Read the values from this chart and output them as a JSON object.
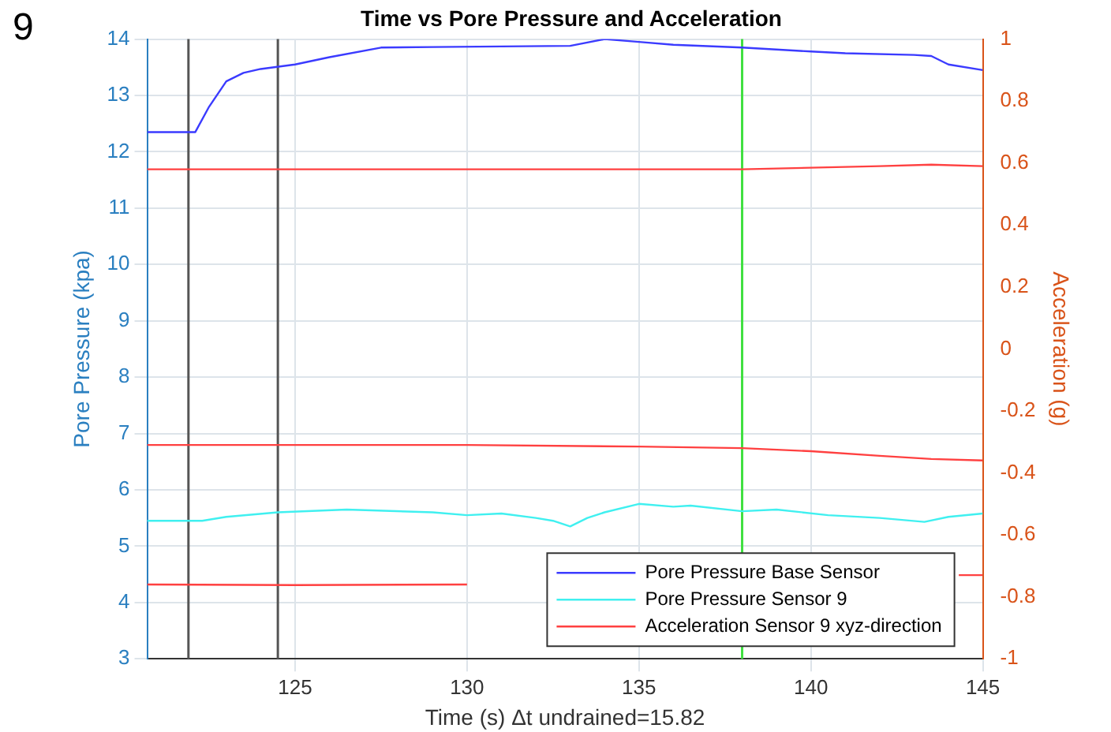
{
  "chart_data": {
    "type": "line",
    "title": "Time vs Pore Pressure and Acceleration",
    "xlabel": "Time (s) Δt undrained=15.82",
    "ylabel": "Pore Pressure (kpa)",
    "y2label": "Acceleration (g)",
    "annotations": [
      "9"
    ],
    "xlim": [
      120.7,
      145
    ],
    "xticks": [
      125,
      130,
      135,
      140,
      145
    ],
    "ylim": [
      3,
      14
    ],
    "yticks": [
      3,
      4,
      5,
      6,
      7,
      8,
      9,
      10,
      11,
      12,
      13,
      14
    ],
    "y2lim": [
      -1,
      1
    ],
    "y2ticks": [
      -1,
      -0.8,
      -0.6,
      -0.4,
      -0.2,
      0,
      0.2,
      0.4,
      0.6,
      0.8,
      1
    ],
    "grid": true,
    "legend": "bottom right",
    "marker": "none",
    "line_style": "solid",
    "series": [
      {
        "name": "Pore Pressure Base Sensor",
        "color": "#3b3bff",
        "x": [
          120.7,
          122.1,
          122.5,
          123,
          123.5,
          124,
          125,
          126,
          127.5,
          129,
          131,
          133,
          134,
          135,
          136,
          138,
          140,
          141,
          143,
          143.5,
          144,
          145
        ],
        "values": [
          12.35,
          12.35,
          12.8,
          13.25,
          13.4,
          13.47,
          13.55,
          13.68,
          13.85,
          13.86,
          13.87,
          13.88,
          14.0,
          13.95,
          13.9,
          13.85,
          13.78,
          13.75,
          13.72,
          13.7,
          13.55,
          13.45
        ]
      },
      {
        "name": "Pore Pressure Sensor 9",
        "color": "#40f0f0",
        "x": [
          120.7,
          122.3,
          123,
          124.5,
          126.5,
          129,
          130,
          131,
          132,
          132.5,
          133,
          133.5,
          134,
          135,
          136,
          136.5,
          138,
          139,
          140.5,
          142,
          143.3,
          144,
          145
        ],
        "values": [
          5.45,
          5.45,
          5.52,
          5.6,
          5.65,
          5.6,
          5.55,
          5.58,
          5.5,
          5.45,
          5.35,
          5.5,
          5.6,
          5.75,
          5.7,
          5.72,
          5.62,
          5.65,
          5.55,
          5.5,
          5.43,
          5.52,
          5.58
        ]
      },
      {
        "name": "Acceleration Sensor 9 xyz-direction",
        "color": "#ff4040",
        "axis": "y2",
        "x": [
          120.7,
          130,
          138,
          142,
          143.5,
          145
        ],
        "values": [
          0.58,
          0.58,
          0.58,
          0.59,
          0.595,
          0.59
        ]
      },
      {
        "color": "#ff4040",
        "axis": "y2",
        "x": [
          120.7,
          125,
          130,
          135,
          138,
          140,
          142,
          143.5,
          145
        ],
        "values": [
          -0.31,
          -0.31,
          -0.31,
          -0.315,
          -0.32,
          -0.33,
          -0.345,
          -0.355,
          -0.36
        ]
      },
      {
        "color": "#ff4040",
        "axis": "y2",
        "x": [
          120.7,
          125,
          130,
          135,
          138,
          140,
          142,
          144.3,
          145
        ],
        "values": [
          -0.76,
          -0.762,
          -0.76,
          null,
          null,
          null,
          null,
          -0.73,
          -0.73
        ]
      }
    ],
    "ref_lines": [
      {
        "axis": "x",
        "value": 121.9,
        "color": "#555555"
      },
      {
        "axis": "x",
        "value": 124.5,
        "color": "#555555"
      },
      {
        "axis": "x",
        "value": 138,
        "color": "#40e040"
      }
    ]
  }
}
